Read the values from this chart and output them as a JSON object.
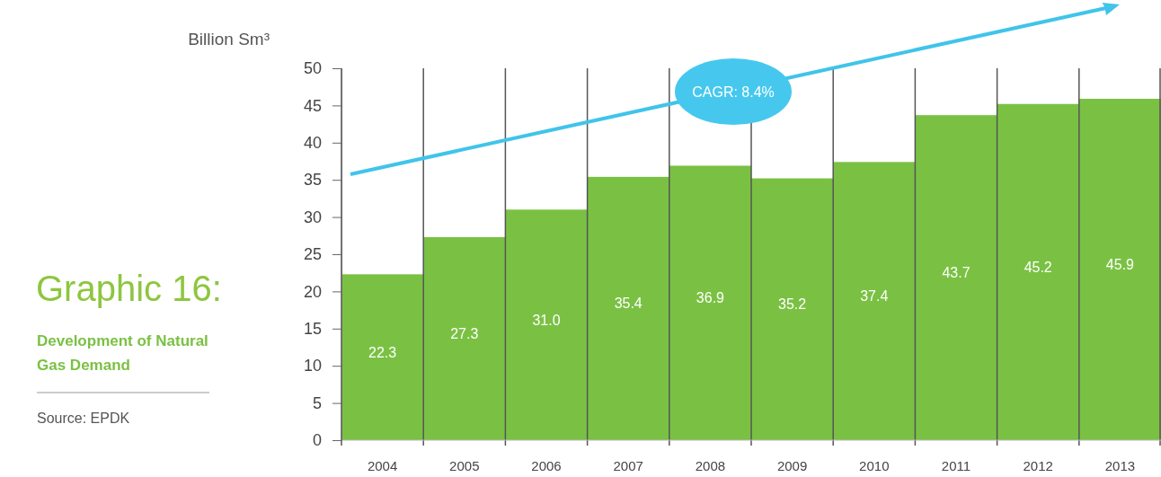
{
  "chart_data": {
    "type": "bar",
    "title": "Graphic 16:",
    "subtitle": "Development of Natural Gas Demand",
    "ylabel": "Billion Sm³",
    "categories": [
      "2004",
      "2005",
      "2006",
      "2007",
      "2008",
      "2009",
      "2010",
      "2011",
      "2012",
      "2013"
    ],
    "values": [
      22.3,
      27.3,
      31.0,
      35.4,
      36.9,
      35.2,
      37.4,
      43.7,
      45.2,
      45.9
    ],
    "value_labels": [
      "22.3",
      "27.3",
      "31.0",
      "35.4",
      "36.9",
      "35.2",
      "37.4",
      "43.7",
      "45.2",
      "45.9"
    ],
    "color": "#7ac143",
    "ylim": [
      0,
      50
    ],
    "yticks": [
      0,
      5,
      10,
      15,
      20,
      25,
      30,
      35,
      40,
      45,
      50
    ],
    "grid": "x",
    "annotations": [
      "CAGR: 8.4%",
      "Source: EPDK"
    ]
  }
}
